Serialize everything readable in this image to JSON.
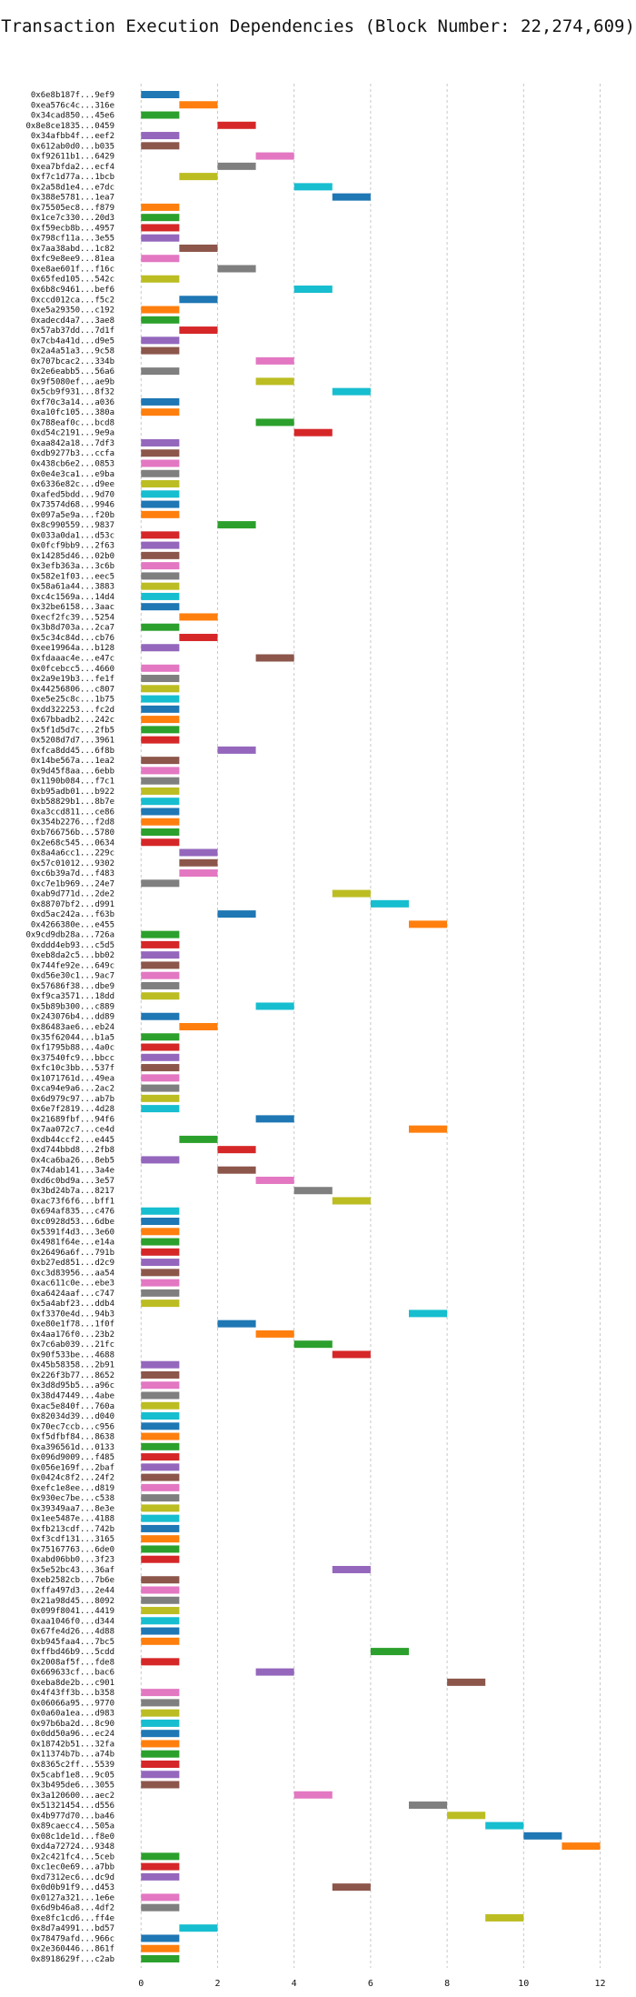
{
  "chart_data": {
    "type": "bar",
    "orientation": "horizontal-gantt",
    "title": "Transaction Execution Dependencies (Block Number: 22,274,609)",
    "xlabel": "",
    "ylabel": "",
    "xlim": [
      -0.6,
      12.7
    ],
    "xticks": [
      0,
      2,
      4,
      6,
      8,
      10,
      12
    ],
    "grid": true,
    "palette": [
      "#1f77b4",
      "#ff7f0e",
      "#2ca02c",
      "#d62728",
      "#9467bd",
      "#8c564b",
      "#e377c2",
      "#7f7f7f",
      "#bcbd22",
      "#17becf"
    ],
    "transactions": [
      {
        "label": "0x6e8b187f...9ef9",
        "start": 0,
        "color": 0
      },
      {
        "label": "0xea576c4c...316e",
        "start": 1,
        "color": 1
      },
      {
        "label": "0x34cad850...45e6",
        "start": 0,
        "color": 2
      },
      {
        "label": "0x8e8ce1835...0459",
        "start": 2,
        "color": 3
      },
      {
        "label": "0x34afbb4f...eef2",
        "start": 0,
        "color": 4
      },
      {
        "label": "0x612ab0d0...b035",
        "start": 0,
        "color": 5
      },
      {
        "label": "0xf92611b1...6429",
        "start": 3,
        "color": 6
      },
      {
        "label": "0xea7bfda2...ecf4",
        "start": 2,
        "color": 7
      },
      {
        "label": "0xf7c1d77a...1bcb",
        "start": 1,
        "color": 8
      },
      {
        "label": "0x2a58d1e4...e7dc",
        "start": 4,
        "color": 9
      },
      {
        "label": "0x388e5781...1ea7",
        "start": 5,
        "color": 0
      },
      {
        "label": "0x75505ec8...f879",
        "start": 0,
        "color": 1
      },
      {
        "label": "0x1ce7c330...20d3",
        "start": 0,
        "color": 2
      },
      {
        "label": "0xf59ecb8b...4957",
        "start": 0,
        "color": 3
      },
      {
        "label": "0x798cf11a...3e55",
        "start": 0,
        "color": 4
      },
      {
        "label": "0x7aa38abd...1c82",
        "start": 1,
        "color": 5
      },
      {
        "label": "0xfc9e8ee9...81ea",
        "start": 0,
        "color": 6
      },
      {
        "label": "0xe8ae601f...f16c",
        "start": 2,
        "color": 7
      },
      {
        "label": "0x65fed105...542c",
        "start": 0,
        "color": 8
      },
      {
        "label": "0x6b8c9461...bef6",
        "start": 4,
        "color": 9
      },
      {
        "label": "0xccd012ca...f5c2",
        "start": 1,
        "color": 0
      },
      {
        "label": "0xe5a29350...c192",
        "start": 0,
        "color": 1
      },
      {
        "label": "0xadecd4a7...3ae8",
        "start": 0,
        "color": 2
      },
      {
        "label": "0x57ab37dd...7d1f",
        "start": 1,
        "color": 3
      },
      {
        "label": "0x7cb4a41d...d9e5",
        "start": 0,
        "color": 4
      },
      {
        "label": "0x2a4a51a3...9c58",
        "start": 0,
        "color": 5
      },
      {
        "label": "0x707bcac2...334b",
        "start": 3,
        "color": 6
      },
      {
        "label": "0x2e6eabb5...56a6",
        "start": 0,
        "color": 7
      },
      {
        "label": "0x9f5080ef...ae9b",
        "start": 3,
        "color": 8
      },
      {
        "label": "0x5cb9f931...8f32",
        "start": 5,
        "color": 9
      },
      {
        "label": "0xf70c3a14...a036",
        "start": 0,
        "color": 0
      },
      {
        "label": "0xa10fc105...380a",
        "start": 0,
        "color": 1
      },
      {
        "label": "0x788eaf0c...bcd8",
        "start": 3,
        "color": 2
      },
      {
        "label": "0xd54c2191...9e9a",
        "start": 4,
        "color": 3
      },
      {
        "label": "0xaa842a18...7df3",
        "start": 0,
        "color": 4
      },
      {
        "label": "0xdb9277b3...ccfa",
        "start": 0,
        "color": 5
      },
      {
        "label": "0x438cb6e2...0853",
        "start": 0,
        "color": 6
      },
      {
        "label": "0x0e4e3ca1...e9ba",
        "start": 0,
        "color": 7
      },
      {
        "label": "0x6336e82c...d9ee",
        "start": 0,
        "color": 8
      },
      {
        "label": "0xafed5bdd...9d70",
        "start": 0,
        "color": 9
      },
      {
        "label": "0x73574d68...9946",
        "start": 0,
        "color": 0
      },
      {
        "label": "0x097a5e9a...f20b",
        "start": 0,
        "color": 1
      },
      {
        "label": "0x8c990559...9837",
        "start": 2,
        "color": 2
      },
      {
        "label": "0x033a0da1...d53c",
        "start": 0,
        "color": 3
      },
      {
        "label": "0x0fcf9bb9...2f63",
        "start": 0,
        "color": 4
      },
      {
        "label": "0x14285d46...02b0",
        "start": 0,
        "color": 5
      },
      {
        "label": "0x3efb363a...3c6b",
        "start": 0,
        "color": 6
      },
      {
        "label": "0x582e1f03...eec5",
        "start": 0,
        "color": 7
      },
      {
        "label": "0x58a61a44...3883",
        "start": 0,
        "color": 8
      },
      {
        "label": "0xc4c1569a...14d4",
        "start": 0,
        "color": 9
      },
      {
        "label": "0x32be6158...3aac",
        "start": 0,
        "color": 0
      },
      {
        "label": "0xecf2fc39...5254",
        "start": 1,
        "color": 1
      },
      {
        "label": "0x3b8d703a...2ca7",
        "start": 0,
        "color": 2
      },
      {
        "label": "0x5c34c84d...cb76",
        "start": 1,
        "color": 3
      },
      {
        "label": "0xee19964a...b128",
        "start": 0,
        "color": 4
      },
      {
        "label": "0xfdaaac4e...e47c",
        "start": 3,
        "color": 5
      },
      {
        "label": "0x0fcebcc5...4660",
        "start": 0,
        "color": 6
      },
      {
        "label": "0x2a9e19b3...fe1f",
        "start": 0,
        "color": 7
      },
      {
        "label": "0x44256806...c807",
        "start": 0,
        "color": 8
      },
      {
        "label": "0xe5e25c8c...1b75",
        "start": 0,
        "color": 9
      },
      {
        "label": "0xdd322253...fc2d",
        "start": 0,
        "color": 0
      },
      {
        "label": "0x67bbadb2...242c",
        "start": 0,
        "color": 1
      },
      {
        "label": "0x5f1d5d7c...2fb5",
        "start": 0,
        "color": 2
      },
      {
        "label": "0x5208d7d7...3961",
        "start": 0,
        "color": 3
      },
      {
        "label": "0xfca8dd45...6f8b",
        "start": 2,
        "color": 4
      },
      {
        "label": "0x14be567a...1ea2",
        "start": 0,
        "color": 5
      },
      {
        "label": "0x9d45f8aa...6ebb",
        "start": 0,
        "color": 6
      },
      {
        "label": "0x1190b084...f7c1",
        "start": 0,
        "color": 7
      },
      {
        "label": "0xb95adb01...b922",
        "start": 0,
        "color": 8
      },
      {
        "label": "0xb58829b1...8b7e",
        "start": 0,
        "color": 9
      },
      {
        "label": "0xa3ccd811...ce86",
        "start": 0,
        "color": 0
      },
      {
        "label": "0x354b2276...f2d8",
        "start": 0,
        "color": 1
      },
      {
        "label": "0xb766756b...5780",
        "start": 0,
        "color": 2
      },
      {
        "label": "0x2e68c545...0634",
        "start": 0,
        "color": 3
      },
      {
        "label": "0x8a4a6cc1...229c",
        "start": 1,
        "color": 4
      },
      {
        "label": "0x57c01012...9302",
        "start": 1,
        "color": 5
      },
      {
        "label": "0xc6b39a7d...f483",
        "start": 1,
        "color": 6
      },
      {
        "label": "0xc7e1b969...24e7",
        "start": 0,
        "color": 7
      },
      {
        "label": "0xab9d771d...2de2",
        "start": 5,
        "color": 8
      },
      {
        "label": "0x88707bf2...d991",
        "start": 6,
        "color": 9
      },
      {
        "label": "0xd5ac242a...f63b",
        "start": 2,
        "color": 0
      },
      {
        "label": "0x4266380e...e455",
        "start": 7,
        "color": 1
      },
      {
        "label": "0x9cd9db28a...726a",
        "start": 0,
        "color": 2
      },
      {
        "label": "0xddd4eb93...c5d5",
        "start": 0,
        "color": 3
      },
      {
        "label": "0xeb8da2c5...bb02",
        "start": 0,
        "color": 4
      },
      {
        "label": "0x744fe92e...649c",
        "start": 0,
        "color": 5
      },
      {
        "label": "0xd56e30c1...9ac7",
        "start": 0,
        "color": 6
      },
      {
        "label": "0x57686f38...dbe9",
        "start": 0,
        "color": 7
      },
      {
        "label": "0xf9ca3571...18dd",
        "start": 0,
        "color": 8
      },
      {
        "label": "0x5b89b300...c889",
        "start": 3,
        "color": 9
      },
      {
        "label": "0x243076b4...dd89",
        "start": 0,
        "color": 0
      },
      {
        "label": "0x86483ae6...eb24",
        "start": 1,
        "color": 1
      },
      {
        "label": "0x35f62044...b1a5",
        "start": 0,
        "color": 2
      },
      {
        "label": "0xf1795b88...4a0c",
        "start": 0,
        "color": 3
      },
      {
        "label": "0x37540fc9...bbcc",
        "start": 0,
        "color": 4
      },
      {
        "label": "0xfc10c3bb...537f",
        "start": 0,
        "color": 5
      },
      {
        "label": "0x1071761d...49ea",
        "start": 0,
        "color": 6
      },
      {
        "label": "0xca94e9a6...2ac2",
        "start": 0,
        "color": 7
      },
      {
        "label": "0x6d979c97...ab7b",
        "start": 0,
        "color": 8
      },
      {
        "label": "0x6e7f2819...4d28",
        "start": 0,
        "color": 9
      },
      {
        "label": "0x21689fbf...94f6",
        "start": 3,
        "color": 0
      },
      {
        "label": "0x7aa072c7...ce4d",
        "start": 7,
        "color": 1
      },
      {
        "label": "0xdb44ccf2...e445",
        "start": 1,
        "color": 2
      },
      {
        "label": "0xd744bbd8...2fb8",
        "start": 2,
        "color": 3
      },
      {
        "label": "0x4ca6ba26...8eb5",
        "start": 0,
        "color": 4
      },
      {
        "label": "0x74dab141...3a4e",
        "start": 2,
        "color": 5
      },
      {
        "label": "0xd6c0bd9a...3e57",
        "start": 3,
        "color": 6
      },
      {
        "label": "0x3bd24b7a...8217",
        "start": 4,
        "color": 7
      },
      {
        "label": "0xac73f6f6...bff1",
        "start": 5,
        "color": 8
      },
      {
        "label": "0x694af835...c476",
        "start": 0,
        "color": 9
      },
      {
        "label": "0xc0928d53...6dbe",
        "start": 0,
        "color": 0
      },
      {
        "label": "0x5391f4d3...3e60",
        "start": 0,
        "color": 1
      },
      {
        "label": "0x4981f64e...e14a",
        "start": 0,
        "color": 2
      },
      {
        "label": "0x26496a6f...791b",
        "start": 0,
        "color": 3
      },
      {
        "label": "0xb27ed851...d2c9",
        "start": 0,
        "color": 4
      },
      {
        "label": "0xc3d83956...aa54",
        "start": 0,
        "color": 5
      },
      {
        "label": "0xac611c0e...ebe3",
        "start": 0,
        "color": 6
      },
      {
        "label": "0xa6424aaf...c747",
        "start": 0,
        "color": 7
      },
      {
        "label": "0x5a4abf23...ddb4",
        "start": 0,
        "color": 8
      },
      {
        "label": "0xf3370e4d...94b3",
        "start": 7,
        "color": 9
      },
      {
        "label": "0xe80e1f78...1f0f",
        "start": 2,
        "color": 0
      },
      {
        "label": "0x4aa176f0...23b2",
        "start": 3,
        "color": 1
      },
      {
        "label": "0x7c6ab039...21fc",
        "start": 4,
        "color": 2
      },
      {
        "label": "0x90f533be...4688",
        "start": 5,
        "color": 3
      },
      {
        "label": "0x45b58358...2b91",
        "start": 0,
        "color": 4
      },
      {
        "label": "0x226f3b77...8652",
        "start": 0,
        "color": 5
      },
      {
        "label": "0x3d8d95b5...a96c",
        "start": 0,
        "color": 6
      },
      {
        "label": "0x38d47449...4abe",
        "start": 0,
        "color": 7
      },
      {
        "label": "0xac5e840f...760a",
        "start": 0,
        "color": 8
      },
      {
        "label": "0x82034d39...d040",
        "start": 0,
        "color": 9
      },
      {
        "label": "0x70ec7ccb...c956",
        "start": 0,
        "color": 0
      },
      {
        "label": "0xf5dfbf84...8638",
        "start": 0,
        "color": 1
      },
      {
        "label": "0xa396561d...0133",
        "start": 0,
        "color": 2
      },
      {
        "label": "0x096d9009...f485",
        "start": 0,
        "color": 3
      },
      {
        "label": "0x056e169f...2baf",
        "start": 0,
        "color": 4
      },
      {
        "label": "0x0424c8f2...24f2",
        "start": 0,
        "color": 5
      },
      {
        "label": "0xefc1e8ee...d819",
        "start": 0,
        "color": 6
      },
      {
        "label": "0x930ec7be...c538",
        "start": 0,
        "color": 7
      },
      {
        "label": "0x39349aa7...8e3e",
        "start": 0,
        "color": 8
      },
      {
        "label": "0x1ee5487e...4188",
        "start": 0,
        "color": 9
      },
      {
        "label": "0xfb213cdf...742b",
        "start": 0,
        "color": 0
      },
      {
        "label": "0xf3cdf131...3165",
        "start": 0,
        "color": 1
      },
      {
        "label": "0x75167763...6de0",
        "start": 0,
        "color": 2
      },
      {
        "label": "0xabd06bb0...3f23",
        "start": 0,
        "color": 3
      },
      {
        "label": "0x5e52bc43...36af",
        "start": 5,
        "color": 4
      },
      {
        "label": "0xeb2582cb...7b6e",
        "start": 0,
        "color": 5
      },
      {
        "label": "0xffa497d3...2e44",
        "start": 0,
        "color": 6
      },
      {
        "label": "0x21a98d45...8092",
        "start": 0,
        "color": 7
      },
      {
        "label": "0x099f8041...4419",
        "start": 0,
        "color": 8
      },
      {
        "label": "0xaa1046f0...d344",
        "start": 0,
        "color": 9
      },
      {
        "label": "0x67fe4d26...4d88",
        "start": 0,
        "color": 0
      },
      {
        "label": "0xb945faa4...7bc5",
        "start": 0,
        "color": 1
      },
      {
        "label": "0xffbd46b9...5cdd",
        "start": 6,
        "color": 2
      },
      {
        "label": "0x2008af5f...fde8",
        "start": 0,
        "color": 3
      },
      {
        "label": "0x669633cf...bac6",
        "start": 3,
        "color": 4
      },
      {
        "label": "0xeba8de2b...c901",
        "start": 8,
        "color": 5
      },
      {
        "label": "0x4f43ff3b...b358",
        "start": 0,
        "color": 6
      },
      {
        "label": "0x06066a95...9770",
        "start": 0,
        "color": 7
      },
      {
        "label": "0x0a60a1ea...d983",
        "start": 0,
        "color": 8
      },
      {
        "label": "0x97b6ba2d...8c90",
        "start": 0,
        "color": 9
      },
      {
        "label": "0x0dd50a96...ec24",
        "start": 0,
        "color": 0
      },
      {
        "label": "0x18742b51...32fa",
        "start": 0,
        "color": 1
      },
      {
        "label": "0x11374b7b...a74b",
        "start": 0,
        "color": 2
      },
      {
        "label": "0x8365c2ff...5539",
        "start": 0,
        "color": 3
      },
      {
        "label": "0x5cabf1e8...9c05",
        "start": 0,
        "color": 4
      },
      {
        "label": "0x3b495de6...3055",
        "start": 0,
        "color": 5
      },
      {
        "label": "0x3a120600...aec2",
        "start": 4,
        "color": 6
      },
      {
        "label": "0x51321454...d556",
        "start": 7,
        "color": 7
      },
      {
        "label": "0x4b977d70...ba46",
        "start": 8,
        "color": 8
      },
      {
        "label": "0x89caecc4...505a",
        "start": 9,
        "color": 9
      },
      {
        "label": "0x08c1de1d...f8e0",
        "start": 10,
        "color": 0
      },
      {
        "label": "0xd4a72724...9348",
        "start": 11,
        "color": 1
      },
      {
        "label": "0x2c421fc4...5ceb",
        "start": 0,
        "color": 2
      },
      {
        "label": "0xc1ec0e69...a7bb",
        "start": 0,
        "color": 3
      },
      {
        "label": "0xd7312ec6...dc9d",
        "start": 0,
        "color": 4
      },
      {
        "label": "0x0d0b91f9...d453",
        "start": 5,
        "color": 5
      },
      {
        "label": "0x0127a321...1e6e",
        "start": 0,
        "color": 6
      },
      {
        "label": "0x6d9b46a8...4df2",
        "start": 0,
        "color": 7
      },
      {
        "label": "0xe8fc1cd6...ff4e",
        "start": 9,
        "color": 8
      },
      {
        "label": "0x8d7a4991...bd57",
        "start": 1,
        "color": 9
      },
      {
        "label": "0x78479afd...966c",
        "start": 0,
        "color": 0
      },
      {
        "label": "0x2e360446...861f",
        "start": 0,
        "color": 1
      },
      {
        "label": "0x8918629f...c2ab",
        "start": 0,
        "color": 2
      }
    ]
  }
}
